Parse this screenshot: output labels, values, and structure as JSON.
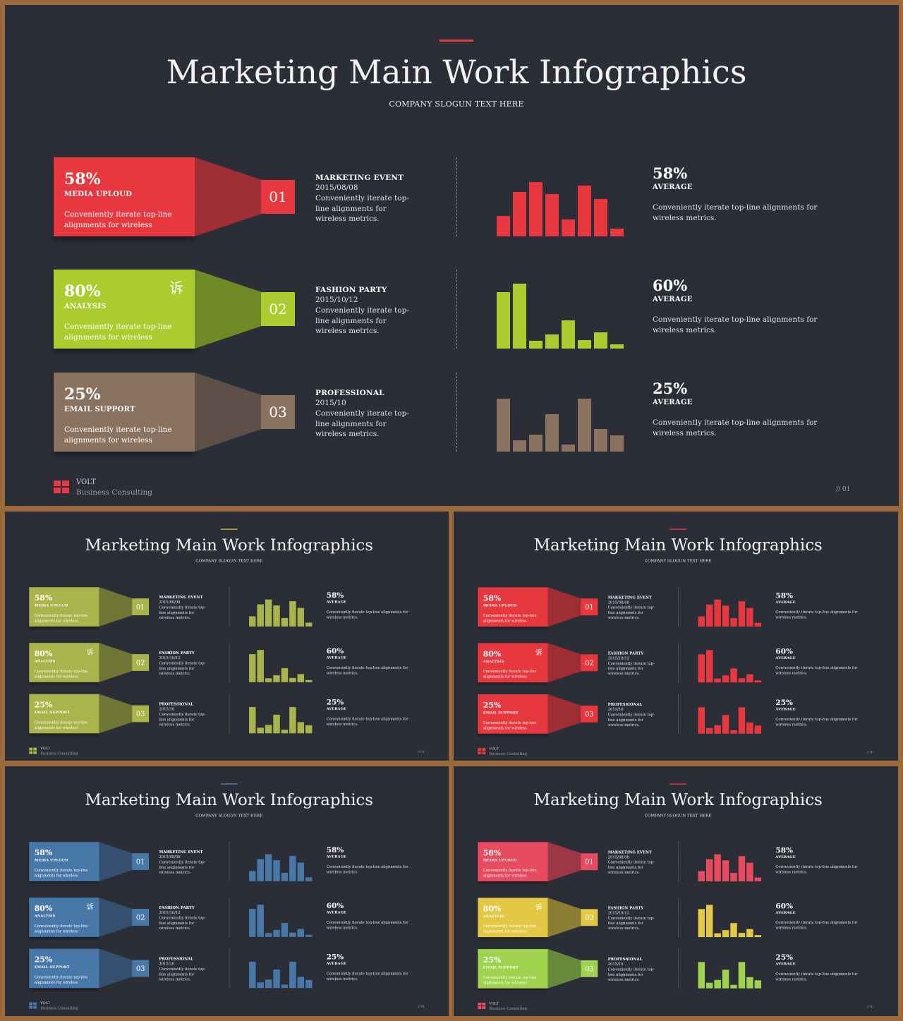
{
  "title": "Marketing Main Work Infographics",
  "slogan": "COMPANY SLOGUN TEXT HERE",
  "brand": {
    "name": "VOLT",
    "subtitle": "Business  Consulting"
  },
  "page_number": "// 01",
  "rows": [
    {
      "pct": "58%",
      "label": "MEDIA UPLOUD",
      "desc": "Conveniently iterate top-line alignments for wireless",
      "num": "01",
      "mark": "",
      "event": {
        "title": "MARKETING EVENT",
        "date": "2015/08/08",
        "desc": "Conveniently iterate top-line alignments for wireless metrics."
      },
      "stat": {
        "pct": "58%",
        "label": "AVERAGE",
        "desc": "Conveniently iterate top-line alignments for wireless metrics."
      },
      "bars": [
        0.31,
        0.69,
        0.84,
        0.65,
        0.26,
        0.78,
        0.58,
        0.12
      ]
    },
    {
      "pct": "80%",
      "label": "ANALYSIS",
      "desc": "Conveniently iterate top-line alignments for wireless",
      "num": "02",
      "mark": "诉",
      "event": {
        "title": "FASHION PARTY",
        "date": "2015/10/12",
        "desc": "Conveniently iterate top-line alignments for wireless metrics."
      },
      "stat": {
        "pct": "60%",
        "label": "AVERAGE",
        "desc": "Conveniently iterate top-line alignments for wireless metrics."
      },
      "bars": [
        0.87,
        1.0,
        0.12,
        0.22,
        0.43,
        0.13,
        0.25,
        0.07
      ]
    },
    {
      "pct": "25%",
      "label": "EMAIL SUPPORT",
      "desc": "Conveniently iterate top-line alignments for wireless",
      "num": "03",
      "mark": "",
      "event": {
        "title": "PROFESSIONAL",
        "date": "2015/10",
        "desc": "Conveniently iterate top-line alignments for wireless metrics."
      },
      "stat": {
        "pct": "25%",
        "label": "AVERAGE",
        "desc": "Conveniently iterate top-line alignments for wireless metrics."
      },
      "bars": [
        0.82,
        0.17,
        0.26,
        0.58,
        0.11,
        0.81,
        0.35,
        0.25
      ]
    }
  ],
  "themes": [
    {
      "name": "multi-large",
      "accent": "#e63946",
      "logo": "#e63946",
      "rows": [
        {
          "main": "#e8383f",
          "dark": "#9e2e33",
          "bar": "#e8383f"
        },
        {
          "main": "#abcb2e",
          "dark": "#6e8a26",
          "bar": "#abcb2e"
        },
        {
          "main": "#8a7260",
          "dark": "#5e5048",
          "bar": "#8a7260"
        }
      ]
    },
    {
      "name": "olive",
      "accent": "#c8b43a",
      "logo": "#a9b44a",
      "rows": [
        {
          "main": "#a9b44a",
          "dark": "#6e7535",
          "bar": "#a9b44a"
        },
        {
          "main": "#a9b44a",
          "dark": "#6e7535",
          "bar": "#a9b44a"
        },
        {
          "main": "#a9b44a",
          "dark": "#6e7535",
          "bar": "#a9b44a"
        }
      ]
    },
    {
      "name": "red",
      "accent": "#e63946",
      "logo": "#e8383f",
      "rows": [
        {
          "main": "#e8383f",
          "dark": "#9e2e33",
          "bar": "#e8383f"
        },
        {
          "main": "#e8383f",
          "dark": "#9e2e33",
          "bar": "#e8383f"
        },
        {
          "main": "#e8383f",
          "dark": "#9e2e33",
          "bar": "#e8383f"
        }
      ]
    },
    {
      "name": "blue",
      "accent": "#4a7bb0",
      "logo": "#4878a8",
      "rows": [
        {
          "main": "#4878a8",
          "dark": "#354f6e",
          "bar": "#4878a8"
        },
        {
          "main": "#4878a8",
          "dark": "#354f6e",
          "bar": "#4878a8"
        },
        {
          "main": "#4878a8",
          "dark": "#354f6e",
          "bar": "#4878a8"
        }
      ]
    },
    {
      "name": "multi-small",
      "accent": "#e63946",
      "logo": "#e84a5f",
      "rows": [
        {
          "main": "#e84a5f",
          "dark": "#9c3846",
          "bar": "#e84a5f"
        },
        {
          "main": "#e3c845",
          "dark": "#8e7e35",
          "bar": "#e3c845"
        },
        {
          "main": "#9fd34f",
          "dark": "#67893a",
          "bar": "#9fd34f"
        }
      ]
    }
  ]
}
